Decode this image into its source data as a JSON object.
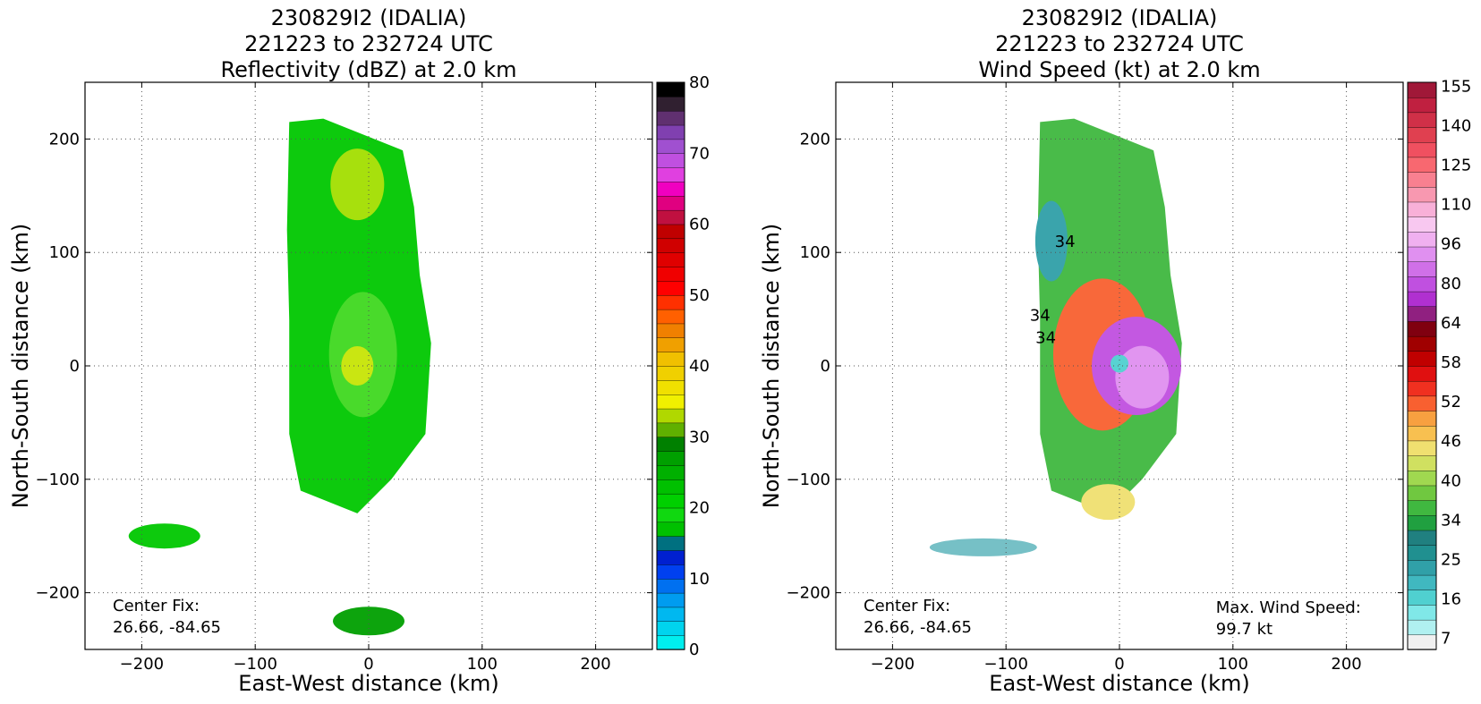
{
  "chart_data": [
    {
      "type": "heatmap",
      "title": [
        "230829I2 (IDALIA)",
        "221223 to 232724 UTC",
        "Reflectivity (dBZ) at 2.0 km"
      ],
      "xlabel": "East-West distance (km)",
      "ylabel": "North-South distance (km)",
      "xlim": [
        -250,
        250
      ],
      "ylim": [
        -250,
        250
      ],
      "x_ticks": [
        -200,
        -100,
        0,
        100,
        200
      ],
      "y_ticks": [
        -200,
        -100,
        0,
        100,
        200
      ],
      "grid": true,
      "center_fix_label": "Center Fix:",
      "center_fix_value": "26.66, -84.65",
      "colorbar": {
        "min": 0,
        "max": 80,
        "step": 2.5,
        "ticks": [
          0,
          10,
          20,
          30,
          40,
          50,
          60,
          70,
          80
        ],
        "colors": [
          "#00eeee",
          "#00d4ee",
          "#00b8f0",
          "#009cf0",
          "#0070f0",
          "#0040f0",
          "#0020d0",
          "#007080",
          "#00c000",
          "#10d810",
          "#00d000",
          "#00c000",
          "#00b000",
          "#00a000",
          "#008000",
          "#60b000",
          "#b0d800",
          "#f0f000",
          "#f0e000",
          "#f0d000",
          "#f0c000",
          "#f0a000",
          "#f08000",
          "#ff6000",
          "#ff3000",
          "#ff0000",
          "#f00000",
          "#e00000",
          "#d00000",
          "#c00000",
          "#c01040",
          "#e00080",
          "#f000c0",
          "#e040e0",
          "#c050e0",
          "#a050d0",
          "#8040b0",
          "#603070",
          "#302030",
          "#000000"
        ]
      },
      "blob_colors": [
        "#00c800",
        "#40d820",
        "#e8e800",
        "#00a000"
      ]
    },
    {
      "type": "heatmap",
      "title": [
        "230829I2 (IDALIA)",
        "221223 to 232724 UTC",
        "Wind Speed (kt) at 2.0 km"
      ],
      "xlabel": "East-West distance (km)",
      "ylabel": "North-South distance (km)",
      "xlim": [
        -250,
        250
      ],
      "ylim": [
        -250,
        250
      ],
      "x_ticks": [
        -200,
        -100,
        0,
        100,
        200
      ],
      "y_ticks": [
        -200,
        -100,
        0,
        100,
        200
      ],
      "grid": true,
      "center_fix_label": "Center Fix:",
      "center_fix_value": "26.66, -84.65",
      "max_wind_label": "Max. Wind Speed:",
      "max_wind_value": "99.7 kt",
      "contour_labels": [
        "34",
        "34",
        "34"
      ],
      "colorbar": {
        "tick_labels": [
          "7",
          "16",
          "25",
          "34",
          "40",
          "46",
          "52",
          "58",
          "64",
          "80",
          "96",
          "110",
          "125",
          "140",
          "155"
        ],
        "colors": [
          "#f0f0f0",
          "#b0f0f0",
          "#80e8e8",
          "#50d0d0",
          "#40b8c0",
          "#30a0a8",
          "#209090",
          "#208080",
          "#20a040",
          "#40b840",
          "#70c840",
          "#a0d850",
          "#d0e060",
          "#f0e070",
          "#f8c050",
          "#f8a040",
          "#f86030",
          "#f03020",
          "#e01010",
          "#c00000",
          "#a00000",
          "#800010",
          "#902080",
          "#b030d0",
          "#c050e0",
          "#d070e8",
          "#e090f0",
          "#f0b0f0",
          "#f8c8f0",
          "#f8b0d8",
          "#f898b0",
          "#f88090",
          "#f86870",
          "#f05060",
          "#e04050",
          "#d03048",
          "#c02040",
          "#a01838"
        ]
      },
      "blob_colors": [
        "#40b840",
        "#a0d850",
        "#f86030",
        "#c050e0",
        "#e090f0",
        "#f0e070"
      ]
    }
  ]
}
